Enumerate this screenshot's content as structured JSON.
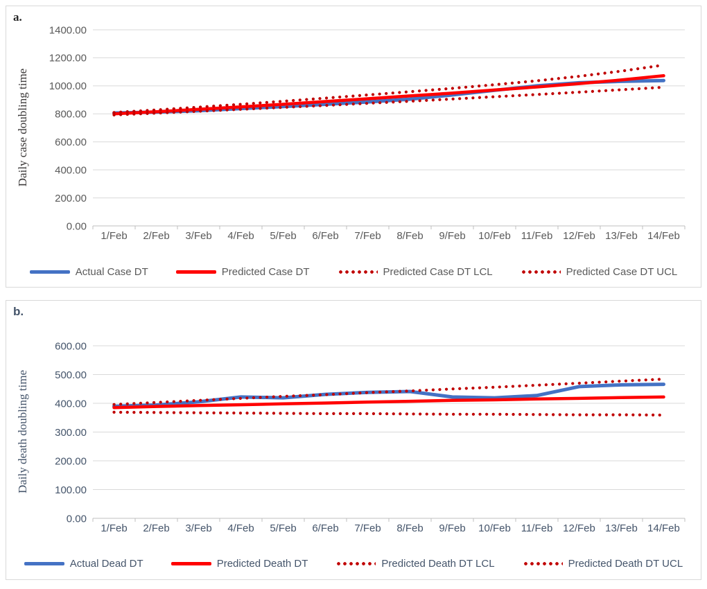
{
  "panels": [
    {
      "label": "a.",
      "y_axis_title": "Daily case doubling time"
    },
    {
      "label": "b.",
      "y_axis_title": "Daily death doubling time"
    }
  ],
  "colors": {
    "actual_blue": "#4472C4",
    "predicted_red": "#FF0000",
    "limit_dark_red": "#C00000",
    "gridline": "#D9D9D9",
    "axis_line": "#BFBFBF"
  },
  "chart_data": [
    {
      "type": "line",
      "panel_label": "a.",
      "ylabel": "Daily case doubling time",
      "categories": [
        "1/Feb",
        "2/Feb",
        "3/Feb",
        "4/Feb",
        "5/Feb",
        "6/Feb",
        "7/Feb",
        "8/Feb",
        "9/Feb",
        "10/Feb",
        "11/Feb",
        "12/Feb",
        "13/Feb",
        "14/Feb"
      ],
      "ylim": [
        0,
        1400
      ],
      "yticks": [
        0,
        200,
        400,
        600,
        800,
        1000,
        1200,
        1400
      ],
      "ytick_labels": [
        "0.00",
        "200.00",
        "400.00",
        "600.00",
        "800.00",
        "1000.00",
        "1200.00",
        "1400.00"
      ],
      "grid": true,
      "legend_position": "bottom",
      "series": [
        {
          "name": "Actual Case DT",
          "color": "#4472C4",
          "style": "solid",
          "width": 5,
          "values": [
            806,
            813,
            822,
            838,
            852,
            868,
            885,
            905,
            935,
            968,
            1000,
            1022,
            1032,
            1038
          ]
        },
        {
          "name": "Predicted Case DT",
          "color": "#FF0000",
          "style": "solid",
          "width": 4.5,
          "values": [
            800,
            815,
            832,
            850,
            868,
            888,
            908,
            928,
            948,
            970,
            992,
            1016,
            1042,
            1072
          ]
        },
        {
          "name": "Predicted Case DT LCL",
          "color": "#C00000",
          "style": "dotted",
          "width": 4.2,
          "values": [
            792,
            805,
            818,
            832,
            846,
            860,
            875,
            890,
            906,
            922,
            938,
            955,
            972,
            990
          ]
        },
        {
          "name": "Predicted Case DT UCL",
          "color": "#C00000",
          "style": "dotted",
          "width": 4.2,
          "values": [
            810,
            828,
            848,
            868,
            890,
            912,
            935,
            958,
            982,
            1008,
            1036,
            1068,
            1105,
            1148
          ]
        }
      ]
    },
    {
      "type": "line",
      "panel_label": "b.",
      "ylabel": "Daily death doubling time",
      "categories": [
        "1/Feb",
        "2/Feb",
        "3/Feb",
        "4/Feb",
        "5/Feb",
        "6/Feb",
        "7/Feb",
        "8/Feb",
        "9/Feb",
        "10/Feb",
        "11/Feb",
        "12/Feb",
        "13/Feb",
        "14/Feb"
      ],
      "ylim": [
        0,
        600
      ],
      "yticks": [
        0,
        100,
        200,
        300,
        400,
        500,
        600
      ],
      "ytick_labels": [
        "0.00",
        "100.00",
        "200.00",
        "300.00",
        "400.00",
        "500.00",
        "600.00"
      ],
      "grid": true,
      "legend_position": "bottom",
      "series": [
        {
          "name": "Actual Dead DT",
          "color": "#4472C4",
          "style": "solid",
          "width": 5,
          "values": [
            390,
            394,
            405,
            422,
            419,
            431,
            438,
            441,
            422,
            419,
            427,
            458,
            464,
            466
          ]
        },
        {
          "name": "Predicted Death DT",
          "color": "#FF0000",
          "style": "solid",
          "width": 4.5,
          "values": [
            385,
            389,
            392,
            395,
            398,
            401,
            404,
            407,
            410,
            412,
            415,
            417,
            420,
            422
          ]
        },
        {
          "name": "Predicted Death DT LCL",
          "color": "#C00000",
          "style": "dotted",
          "width": 4.2,
          "values": [
            369,
            368,
            367,
            366,
            365,
            364,
            364,
            363,
            362,
            362,
            361,
            360,
            360,
            359
          ]
        },
        {
          "name": "Predicted Death DT UCL",
          "color": "#C00000",
          "style": "dotted",
          "width": 4.2,
          "values": [
            396,
            403,
            410,
            417,
            424,
            430,
            437,
            443,
            450,
            456,
            463,
            470,
            477,
            484
          ]
        }
      ]
    }
  ]
}
